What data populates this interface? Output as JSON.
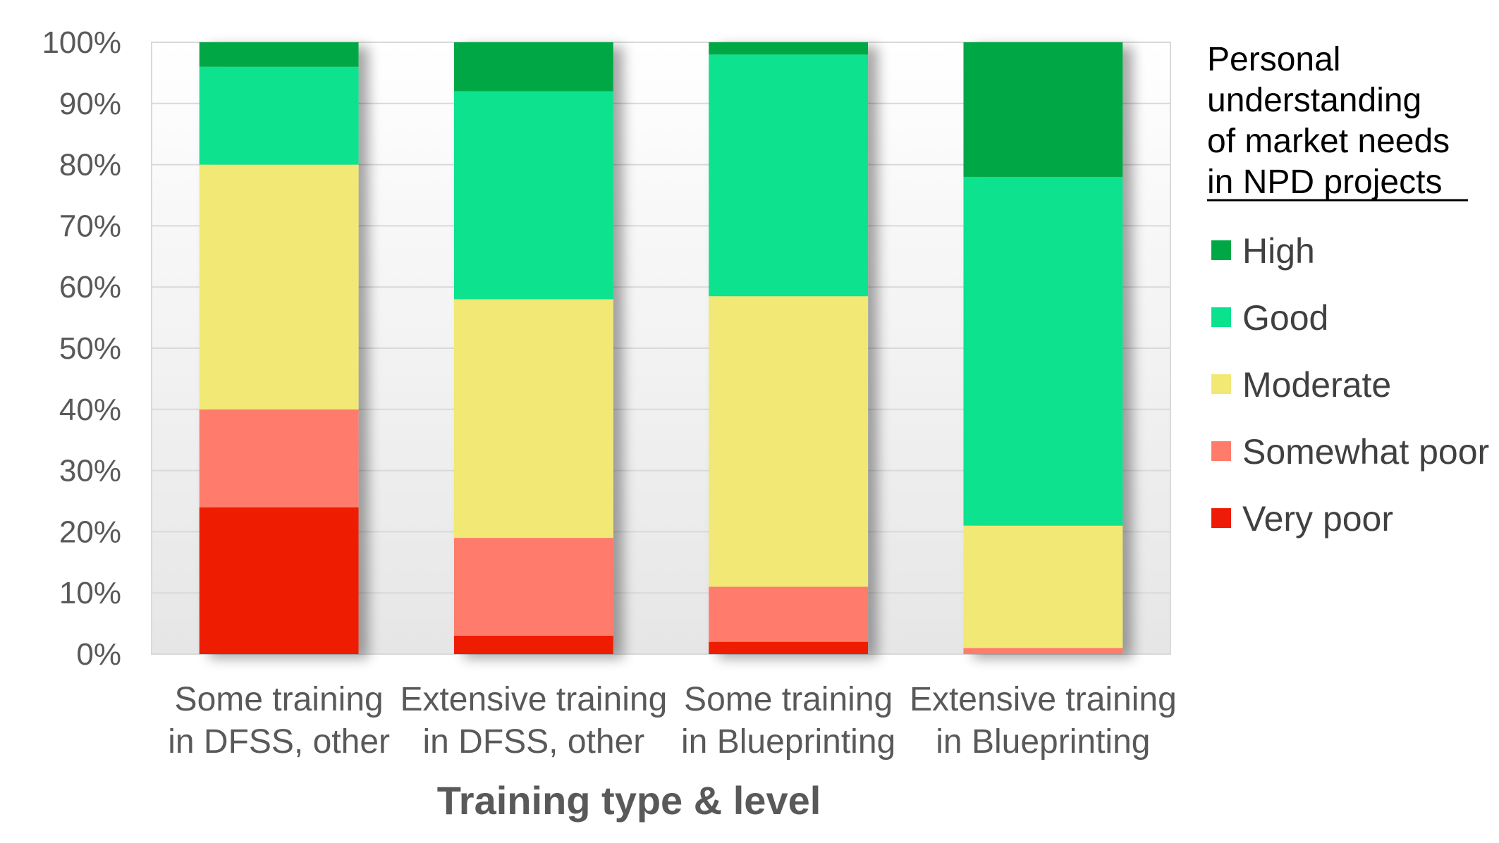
{
  "chart_data": {
    "type": "bar",
    "stacked": true,
    "percent": true,
    "categories": [
      [
        "Some training",
        "in DFSS, other"
      ],
      [
        "Extensive training",
        "in DFSS, other"
      ],
      [
        "Some training",
        "in Blueprinting"
      ],
      [
        "Extensive training",
        "in Blueprinting"
      ]
    ],
    "series": [
      {
        "name": "Very poor",
        "color": "#EE1C06",
        "values": [
          24,
          3,
          2,
          0
        ]
      },
      {
        "name": "Somewhat poor",
        "color": "#FF7B6C",
        "values": [
          16,
          16,
          9,
          1
        ]
      },
      {
        "name": "Moderate",
        "color": "#F2E874",
        "values": [
          40,
          39,
          47.5,
          20
        ]
      },
      {
        "name": "Good",
        "color": "#0BE28E",
        "values": [
          16,
          34,
          39.5,
          57
        ]
      },
      {
        "name": "High",
        "color": "#00A845",
        "values": [
          4,
          8,
          2,
          22
        ]
      }
    ],
    "legend_order": [
      "High",
      "Good",
      "Moderate",
      "Somewhat poor",
      "Very poor"
    ],
    "legend_title": [
      "Personal",
      "understanding",
      "of market needs",
      "in NPD projects"
    ],
    "legend_position": "right",
    "xlabel": "Training type & level",
    "ylabel": "",
    "ylim": [
      0,
      100
    ],
    "yticks": [
      "0%",
      "10%",
      "20%",
      "30%",
      "40%",
      "50%",
      "60%",
      "70%",
      "80%",
      "90%",
      "100%"
    ],
    "grid": true
  }
}
